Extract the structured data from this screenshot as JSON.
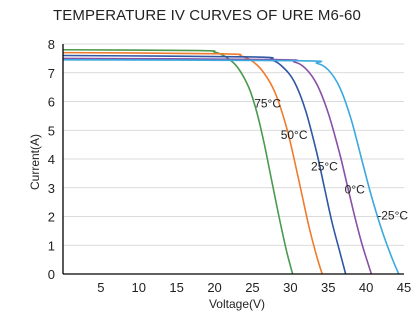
{
  "chart_data": {
    "type": "line",
    "title": "TEMPERATURE IV CURVES OF URE M6-60",
    "xlabel": "Voltage(V)",
    "ylabel": "Current(A)",
    "xlim": [
      0,
      45
    ],
    "ylim": [
      0,
      8
    ],
    "x_ticks": [
      5,
      10,
      15,
      20,
      25,
      30,
      35,
      40,
      45
    ],
    "y_ticks": [
      0,
      1,
      2,
      3,
      4,
      5,
      6,
      7,
      8
    ],
    "grid": "horizontal",
    "series": [
      {
        "name": "75°C",
        "color": "#4a9a4e",
        "x": [
          0,
          18,
          20,
          21.5,
          23,
          24.5,
          25.5,
          26.5,
          27.5,
          28.5,
          29.5,
          30.3
        ],
        "y": [
          7.8,
          7.77,
          7.72,
          7.55,
          7.2,
          6.5,
          5.7,
          4.6,
          3.3,
          2.0,
          0.8,
          0.0
        ]
      },
      {
        "name": "50°C",
        "color": "#ee7b2e",
        "x": [
          0,
          21,
          23.5,
          25,
          26.5,
          28,
          29.5,
          30.5,
          31.5,
          32.5,
          33.5,
          34.2
        ],
        "y": [
          7.7,
          7.66,
          7.58,
          7.4,
          7.0,
          6.3,
          5.1,
          4.0,
          2.8,
          1.6,
          0.6,
          0.0
        ]
      },
      {
        "name": "25°C",
        "color": "#2f57a3",
        "x": [
          0,
          25,
          27.5,
          29,
          30.5,
          32,
          33.5,
          34.5,
          35.5,
          36.5,
          37.3
        ],
        "y": [
          7.6,
          7.55,
          7.45,
          7.2,
          6.7,
          5.7,
          4.2,
          3.0,
          1.8,
          0.8,
          0.0
        ]
      },
      {
        "name": "0°C",
        "color": "#8a4fa6",
        "x": [
          0,
          28,
          30.5,
          32,
          33.5,
          35,
          36.5,
          37.5,
          38.5,
          39.5,
          40.7
        ],
        "y": [
          7.5,
          7.46,
          7.38,
          7.15,
          6.6,
          5.6,
          4.2,
          3.1,
          2.0,
          1.0,
          0.0
        ]
      },
      {
        "name": "-25°C",
        "color": "#3aa9df",
        "x": [
          0,
          31,
          33.5,
          35,
          36.5,
          38,
          39.5,
          40.5,
          41.5,
          42.5,
          43.5,
          44.3
        ],
        "y": [
          7.45,
          7.42,
          7.33,
          7.1,
          6.5,
          5.4,
          3.9,
          2.9,
          2.0,
          1.2,
          0.5,
          0.0
        ]
      }
    ],
    "annotations": [
      "75°C",
      "50°C",
      "25°C",
      "0°C",
      "-25°C"
    ]
  }
}
